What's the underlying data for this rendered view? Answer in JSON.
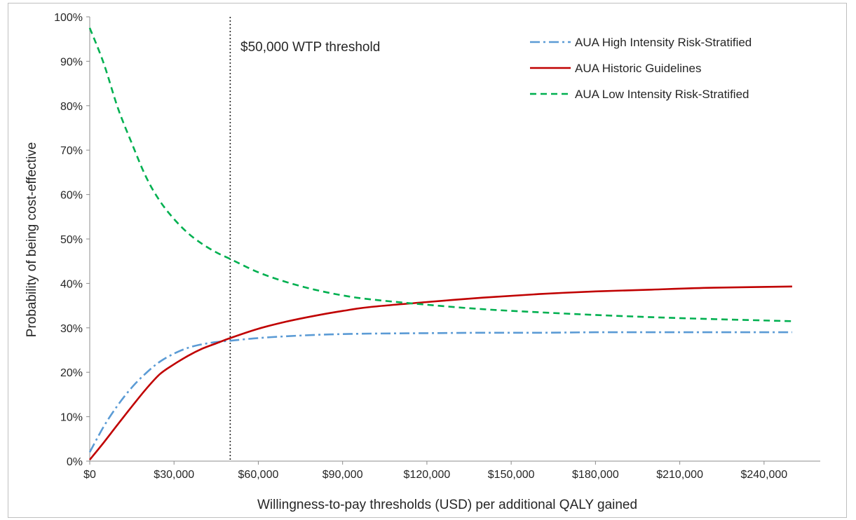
{
  "chart_data": {
    "type": "line",
    "title": "",
    "xlabel": "Willingness-to-pay thresholds (USD) per additional QALY gained",
    "ylabel": "Probability of being cost-effective",
    "xlim": [
      0,
      260000
    ],
    "ylim": [
      0,
      100
    ],
    "x_ticks": [
      0,
      30000,
      60000,
      90000,
      120000,
      150000,
      180000,
      210000,
      240000
    ],
    "x_tick_labels": [
      "$0",
      "$30,000",
      "$60,000",
      "$90,000",
      "$120,000",
      "$150,000",
      "$180,000",
      "$210,000",
      "$240,000"
    ],
    "y_ticks": [
      0,
      10,
      20,
      30,
      40,
      50,
      60,
      70,
      80,
      90,
      100
    ],
    "y_tick_labels": [
      "0%",
      "10%",
      "20%",
      "30%",
      "40%",
      "50%",
      "60%",
      "70%",
      "80%",
      "90%",
      "100%"
    ],
    "grid": false,
    "legend_position": "top-right",
    "annotation": {
      "x": 50000,
      "label": "$50,000 WTP threshold"
    },
    "series": [
      {
        "name": "AUA High Intensity Risk-Stratified",
        "color": "#5b9bd5",
        "style": "dashdot",
        "x": [
          0,
          5000,
          10000,
          15000,
          20000,
          25000,
          30000,
          35000,
          40000,
          45000,
          50000,
          60000,
          70000,
          80000,
          90000,
          100000,
          120000,
          140000,
          160000,
          180000,
          200000,
          220000,
          250000
        ],
        "y": [
          2,
          7.8,
          12.6,
          16.6,
          19.8,
          22.4,
          24.2,
          25.5,
          26.3,
          26.8,
          27.1,
          27.7,
          28.1,
          28.4,
          28.6,
          28.7,
          28.8,
          28.9,
          28.9,
          29,
          29,
          29,
          29
        ]
      },
      {
        "name": "AUA Historic Guidelines",
        "color": "#c00000",
        "style": "solid",
        "x": [
          0,
          5000,
          10000,
          15000,
          20000,
          25000,
          30000,
          35000,
          40000,
          45000,
          50000,
          60000,
          70000,
          80000,
          90000,
          100000,
          120000,
          140000,
          160000,
          180000,
          200000,
          220000,
          250000
        ],
        "y": [
          0.3,
          4.2,
          8.3,
          12.3,
          16.2,
          19.6,
          21.8,
          23.7,
          25.3,
          26.5,
          27.7,
          29.8,
          31.4,
          32.7,
          33.8,
          34.7,
          35.8,
          36.8,
          37.6,
          38.2,
          38.6,
          39,
          39.3
        ]
      },
      {
        "name": "AUA Low Intensity Risk-Stratified",
        "color": "#00b050",
        "style": "dashed",
        "x": [
          0,
          5000,
          10000,
          15000,
          20000,
          25000,
          30000,
          35000,
          40000,
          45000,
          50000,
          60000,
          70000,
          80000,
          90000,
          100000,
          120000,
          140000,
          160000,
          180000,
          200000,
          220000,
          250000
        ],
        "y": [
          97.5,
          89.5,
          79.5,
          71.5,
          64,
          58.5,
          54.5,
          51.3,
          48.9,
          47,
          45.5,
          42.5,
          40.3,
          38.6,
          37.3,
          36.4,
          35.2,
          34.2,
          33.5,
          32.9,
          32.4,
          32,
          31.5
        ]
      }
    ]
  }
}
